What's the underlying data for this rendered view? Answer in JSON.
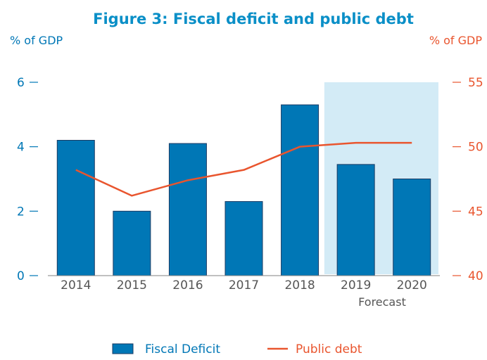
{
  "chart_data": {
    "type": "bar",
    "title": "Figure 3:  Fiscal deficit and public debt",
    "left_unit": "% of GDP",
    "right_unit": "% of GDP",
    "categories": [
      "2014",
      "2015",
      "2016",
      "2017",
      "2018",
      "2019",
      "2020"
    ],
    "forecast_label": "Forecast",
    "forecast_categories": [
      "2019",
      "2020"
    ],
    "ylim_left": [
      0,
      6
    ],
    "yticks_left": [
      "0",
      "2",
      "4",
      "6"
    ],
    "ylim_right": [
      40,
      55
    ],
    "yticks_right": [
      "40",
      "45",
      "50",
      "55"
    ],
    "grid": false,
    "legend_position": "bottom",
    "series": [
      {
        "name": "Fiscal Deficit",
        "type": "bar",
        "axis": "left",
        "color": "#0077b6",
        "values": [
          4.2,
          2.0,
          4.1,
          2.3,
          5.3,
          3.45,
          3.0
        ]
      },
      {
        "name": "Public debt",
        "type": "line",
        "axis": "right",
        "color": "#e9552e",
        "values": [
          48.2,
          46.2,
          47.4,
          48.2,
          50.0,
          50.3,
          50.3
        ]
      }
    ],
    "colors": {
      "text_blue": "#0077b6",
      "text_red": "#e9552e",
      "title": "#0a8fc7",
      "forecast_shade": "#d3ebf6",
      "axis_gray": "#808080",
      "label_gray": "#555555"
    }
  }
}
